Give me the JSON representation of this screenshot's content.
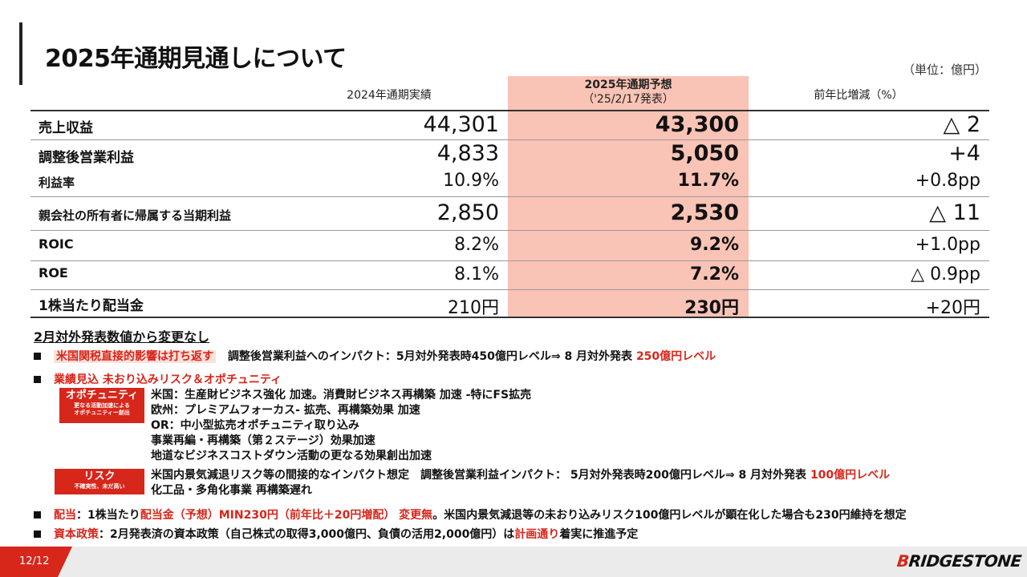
{
  "title": "2025年通期見通しについて",
  "unit": "（単位：億円）",
  "headers": {
    "col_2024": "2024年通期実績",
    "col_2025_line1": "2025年通期予想",
    "col_2025_line2": "（'25/2/17発表）",
    "col_yoy": "前年比増減（%）"
  },
  "rows": [
    {
      "label": "売上収益",
      "v2024": "44,301",
      "v2025": "43,300",
      "yoy": "△ 2"
    },
    {
      "label": "調整後営業利益",
      "v2024": "4,833",
      "v2025": "5,050",
      "yoy": "+4"
    },
    {
      "label": "利益率",
      "v2024": "10.9%",
      "v2025": "11.7%",
      "yoy": "+0.8pp"
    },
    {
      "label": "親会社の所有者に帰属する当期利益",
      "v2024": "2,850",
      "v2025": "2,530",
      "yoy": "△ 11"
    },
    {
      "label": "ROIC",
      "v2024": "8.2%",
      "v2025": "9.2%",
      "yoy": "+1.0pp"
    },
    {
      "label": "ROE",
      "v2024": "8.1%",
      "v2025": "7.2%",
      "yoy": "△ 0.9pp"
    },
    {
      "label": "1株当たり配当金",
      "v2024": "210円",
      "v2025": "230円",
      "yoy": "+20円"
    }
  ],
  "notes": {
    "heading": "2月対外発表数値から変更なし",
    "tariff_highlight": "米国関税直接的影響は打ち返す",
    "tariff_text": "調整後営業利益へのインパクト：5月対外発表時450億円レベル⇒ 8 月対外発表",
    "tariff_value": "250億円レベル",
    "risk_heading": "業績見込 未おり込みリスク＆オポチュニティ",
    "opportunity_tag": "オポチュニティ",
    "opportunity_sub": "更なる活動加速による\nオポチュニティー創出",
    "opportunity_items": [
      "米国：生産財ビジネス強化 加速。消費財ビジネス再構築 加速 -特にFS拡売",
      "欧州：プレミアムフォーカス- 拡売、再構築効果 加速",
      "OR：中小型拡売オポチュニティ取り込み",
      "事業再編・再構築（第２ステージ）効果加速",
      "地道なビジネスコストダウン活動の更なる効果創出加速"
    ],
    "risk_tag": "リスク",
    "risk_sub": "不確実性、未だ高い",
    "risk_line1_text": "米国内景気減退リスク等の間接的なインパクト想定　調整後営業利益インパクト： 5月対外発表時200億円レベル⇒ 8 月対外発表",
    "risk_line1_value": "100億円レベル",
    "risk_line2": "化工品・多角化事業 再構築遅れ",
    "dividend_label": "配当",
    "dividend_text1": "：1株当たり",
    "dividend_red": "配当金（予想）MIN230円（前年比＋20円増配） 変更無",
    "dividend_text2": "。米国内景気減退等の未おり込みリスク100億円レベルが顕在化した場合も230円維持を想定",
    "capital_label": "資本政策",
    "capital_text1": "：2月発表済の資本政策（自己株式の取得3,000億円、負債の活用2,000億円）は",
    "capital_red": "計画通り",
    "capital_text2": "着実に推進予定"
  },
  "footer": {
    "page": "12/12",
    "logo_b": "B",
    "logo_rest": "RIDGESTONE"
  },
  "colors": {
    "accent": "#d7261a",
    "forecast_bg": "#f9c3b5",
    "footer_bg": "#ebebeb"
  }
}
